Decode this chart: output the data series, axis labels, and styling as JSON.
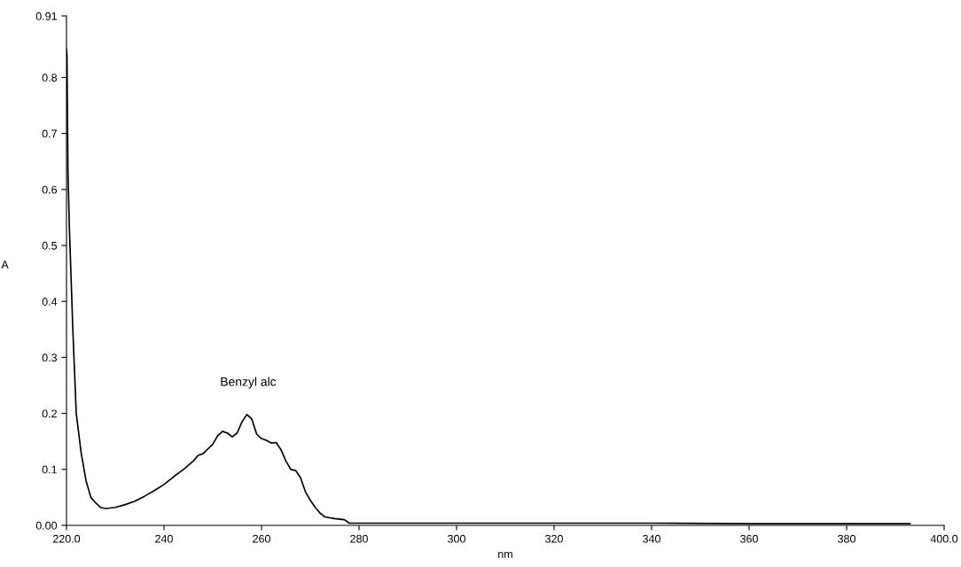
{
  "chart_data": {
    "type": "line",
    "xlabel": "nm",
    "ylabel": "A",
    "x": [
      220.0,
      220.1,
      220.3,
      220.6,
      221.3,
      222,
      223,
      224,
      225,
      226,
      227,
      228,
      230,
      232,
      234,
      236,
      238,
      240,
      242,
      244,
      246,
      247,
      248,
      250,
      251,
      252,
      253,
      254,
      255,
      256,
      257,
      258,
      259,
      260,
      261,
      262,
      263,
      264,
      265,
      266,
      267,
      268,
      269,
      270,
      271,
      272,
      273,
      275,
      277,
      278,
      300,
      320,
      340,
      360,
      393
    ],
    "series": [
      {
        "color": "#000000",
        "values": [
          0.85,
          0.84,
          0.63,
          0.53,
          0.35,
          0.2,
          0.13,
          0.08,
          0.05,
          0.04,
          0.032,
          0.03,
          0.032,
          0.037,
          0.043,
          0.052,
          0.062,
          0.073,
          0.087,
          0.1,
          0.115,
          0.125,
          0.128,
          0.145,
          0.16,
          0.168,
          0.165,
          0.158,
          0.165,
          0.185,
          0.198,
          0.19,
          0.163,
          0.155,
          0.152,
          0.147,
          0.148,
          0.135,
          0.115,
          0.1,
          0.098,
          0.085,
          0.06,
          0.045,
          0.032,
          0.022,
          0.015,
          0.012,
          0.01,
          0.004,
          0.004,
          0.004,
          0.004,
          0.003,
          0.003
        ]
      }
    ],
    "xlim": [
      220,
      400
    ],
    "xticks": [
      {
        "value": 220,
        "label": "220.0"
      },
      240,
      260,
      280,
      300,
      320,
      340,
      360,
      380,
      {
        "value": 400,
        "label": "400.0"
      }
    ],
    "ylim": [
      0,
      0.91
    ],
    "yticks": [
      {
        "value": 0,
        "label": "0.00"
      },
      0.1,
      0.2,
      0.3,
      0.4,
      0.5,
      0.6,
      0.7,
      0.8,
      0.91
    ],
    "annotations": [
      "Benzyl alc"
    ],
    "grid": false,
    "legend": false,
    "marker": "none",
    "line_style": "solid"
  }
}
